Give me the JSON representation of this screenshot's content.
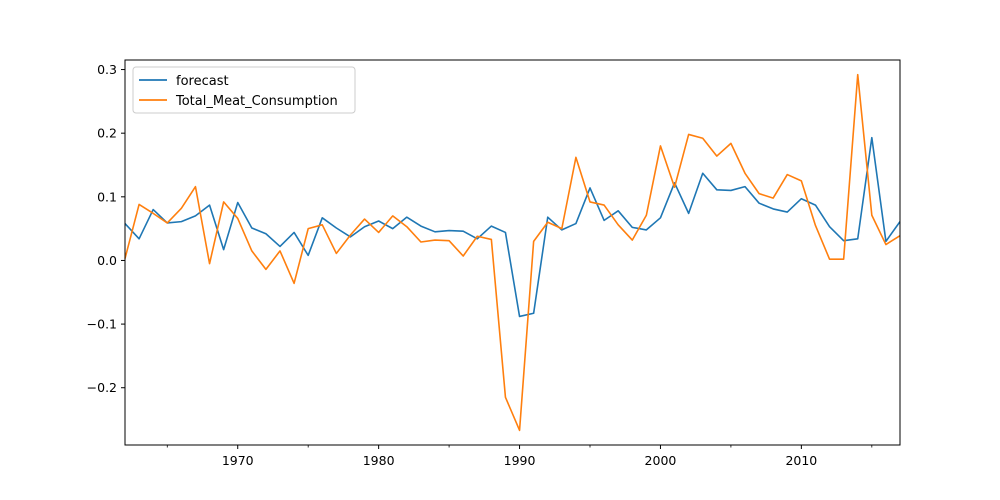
{
  "chart_data": {
    "type": "line",
    "title": "",
    "xlabel": "",
    "ylabel": "",
    "xlim": [
      1962,
      2017
    ],
    "ylim": [
      -0.29,
      0.315
    ],
    "xticks": [
      1970,
      1980,
      1990,
      2000,
      2010
    ],
    "yticks": [
      -0.2,
      -0.1,
      0.0,
      0.1,
      0.2,
      0.3
    ],
    "ytick_labels": [
      "−0.2",
      "−0.1",
      "0.0",
      "0.1",
      "0.2",
      "0.3"
    ],
    "grid": false,
    "legend_position": "upper-left",
    "x": [
      1962,
      1963,
      1964,
      1965,
      1966,
      1967,
      1968,
      1969,
      1970,
      1971,
      1972,
      1973,
      1974,
      1975,
      1976,
      1977,
      1978,
      1979,
      1980,
      1981,
      1982,
      1983,
      1984,
      1985,
      1986,
      1987,
      1988,
      1989,
      1990,
      1991,
      1992,
      1993,
      1994,
      1995,
      1996,
      1997,
      1998,
      1999,
      2000,
      2001,
      2002,
      2003,
      2004,
      2005,
      2006,
      2007,
      2008,
      2009,
      2010,
      2011,
      2012,
      2013,
      2014,
      2015,
      2016,
      2017
    ],
    "series": [
      {
        "name": "forecast",
        "color": "#1f77b4",
        "values": [
          0.058,
          0.034,
          0.08,
          0.059,
          0.061,
          0.07,
          0.087,
          0.017,
          0.091,
          0.051,
          0.042,
          0.022,
          0.044,
          0.008,
          0.067,
          0.051,
          0.037,
          0.053,
          0.062,
          0.05,
          0.068,
          0.054,
          0.045,
          0.047,
          0.046,
          0.034,
          0.054,
          0.044,
          -0.088,
          -0.083,
          0.068,
          0.048,
          0.058,
          0.114,
          0.063,
          0.078,
          0.052,
          0.048,
          0.067,
          0.122,
          0.074,
          0.137,
          0.111,
          0.11,
          0.116,
          0.09,
          0.081,
          0.076,
          0.097,
          0.087,
          0.053,
          0.031,
          0.034,
          0.193,
          0.03,
          0.061
        ]
      },
      {
        "name": "Total_Meat_Consumption",
        "color": "#ff7f0e",
        "values": [
          0.003,
          0.088,
          0.074,
          0.059,
          0.082,
          0.116,
          -0.005,
          0.092,
          0.066,
          0.015,
          -0.014,
          0.015,
          -0.036,
          0.05,
          0.056,
          0.011,
          0.04,
          0.065,
          0.044,
          0.07,
          0.053,
          0.029,
          0.032,
          0.031,
          0.007,
          0.038,
          0.033,
          -0.215,
          -0.267,
          0.03,
          0.06,
          0.05,
          0.162,
          0.092,
          0.087,
          0.056,
          0.032,
          0.071,
          0.18,
          0.115,
          0.198,
          0.192,
          0.164,
          0.184,
          0.137,
          0.105,
          0.098,
          0.135,
          0.125,
          0.055,
          0.002,
          0.002,
          0.292,
          0.071,
          0.025,
          0.039
        ]
      }
    ]
  }
}
